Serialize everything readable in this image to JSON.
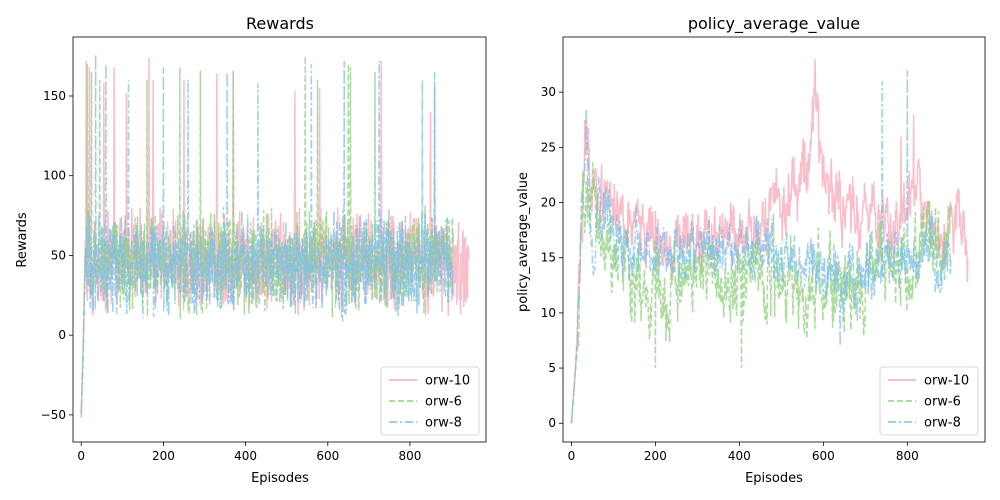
{
  "colors": {
    "orw-10": "#f7a8b8",
    "orw-6": "#8fcf7f",
    "orw-8": "#7fbfe8"
  },
  "chart_data": [
    {
      "type": "line",
      "title": "Rewards",
      "xlabel": "Episodes",
      "ylabel": "Rewards",
      "xlim": [
        -20,
        985
      ],
      "ylim": [
        -67,
        187
      ],
      "xticks": [
        0,
        200,
        400,
        600,
        800
      ],
      "xtick_labels": [
        "0",
        "200",
        "400",
        "600",
        "800"
      ],
      "yticks": [
        -50,
        0,
        50,
        100,
        150
      ],
      "ytick_labels": [
        "−50",
        "0",
        "50",
        "100",
        "150"
      ],
      "legend_position": "lower-right",
      "grid": false,
      "series": [
        {
          "name": "orw-10",
          "style": "solid",
          "n_episodes": 945,
          "x": [
            0,
            5,
            10,
            20,
            30,
            40,
            60,
            80,
            100,
            130,
            160,
            200,
            240,
            280,
            320,
            360,
            400,
            440,
            480,
            520,
            560,
            600,
            640,
            680,
            720,
            760,
            800,
            840,
            880,
            920,
            940
          ],
          "values": [
            -52,
            -5,
            60,
            50,
            52,
            48,
            45,
            50,
            47,
            52,
            48,
            50,
            46,
            49,
            51,
            47,
            45,
            50,
            48,
            46,
            50,
            49,
            47,
            51,
            46,
            48,
            50,
            47,
            49,
            45,
            50
          ],
          "spikes": [
            [
              12,
              172
            ],
            [
              20,
              168
            ],
            [
              55,
              158
            ],
            [
              80,
              168
            ],
            [
              110,
              152
            ],
            [
              165,
              174
            ],
            [
              175,
              160
            ],
            [
              250,
              160
            ],
            [
              330,
              164
            ],
            [
              370,
              165
            ],
            [
              520,
              153
            ],
            [
              580,
              155
            ],
            [
              730,
              172
            ],
            [
              850,
              140
            ]
          ],
          "noise_range": [
            2,
            80
          ]
        },
        {
          "name": "orw-6",
          "style": "dashed",
          "n_episodes": 905,
          "x": [
            0,
            5,
            10,
            20,
            40,
            80,
            120,
            160,
            200,
            240,
            280,
            320,
            360,
            400,
            440,
            480,
            520,
            560,
            600,
            640,
            680,
            720,
            760,
            800,
            840,
            880,
            900
          ],
          "values": [
            -50,
            -10,
            55,
            50,
            47,
            49,
            48,
            46,
            50,
            48,
            47,
            51,
            49,
            46,
            48,
            50,
            47,
            49,
            48,
            50,
            46,
            49,
            51,
            47,
            48,
            50,
            46
          ],
          "spikes": [
            [
              15,
              170
            ],
            [
              25,
              165
            ],
            [
              45,
              160
            ],
            [
              160,
              160
            ],
            [
              240,
              168
            ],
            [
              290,
              166
            ],
            [
              370,
              166
            ],
            [
              545,
              175
            ],
            [
              575,
              160
            ],
            [
              650,
              170
            ],
            [
              655,
              168
            ],
            [
              715,
              165
            ],
            [
              860,
              155
            ]
          ],
          "noise_range": [
            0,
            82
          ]
        },
        {
          "name": "orw-8",
          "style": "dashdot",
          "n_episodes": 905,
          "x": [
            0,
            5,
            10,
            20,
            40,
            80,
            120,
            160,
            200,
            240,
            280,
            320,
            360,
            400,
            440,
            480,
            520,
            560,
            600,
            640,
            680,
            720,
            760,
            800,
            840,
            880,
            900
          ],
          "values": [
            -48,
            -8,
            52,
            50,
            49,
            47,
            50,
            48,
            46,
            49,
            50,
            47,
            48,
            51,
            46,
            49,
            47,
            50,
            48,
            46,
            49,
            51,
            47,
            48,
            50,
            46,
            48
          ],
          "spikes": [
            [
              35,
              176
            ],
            [
              60,
              170
            ],
            [
              115,
              160
            ],
            [
              200,
              168
            ],
            [
              260,
              160
            ],
            [
              355,
              165
            ],
            [
              430,
              158
            ],
            [
              560,
              170
            ],
            [
              640,
              172
            ],
            [
              725,
              172
            ],
            [
              830,
              160
            ],
            [
              860,
              165
            ]
          ],
          "noise_range": [
            0,
            78
          ]
        }
      ]
    },
    {
      "type": "line",
      "title": "policy_average_value",
      "xlabel": "Episodes",
      "ylabel": "policy_average_value",
      "xlim": [
        -20,
        985
      ],
      "ylim": [
        -1.7,
        35
      ],
      "xticks": [
        0,
        200,
        400,
        600,
        800
      ],
      "xtick_labels": [
        "0",
        "200",
        "400",
        "600",
        "800"
      ],
      "yticks": [
        0,
        5,
        10,
        15,
        20,
        25,
        30
      ],
      "ytick_labels": [
        "0",
        "5",
        "10",
        "15",
        "20",
        "25",
        "30"
      ],
      "legend_position": "lower-right",
      "grid": false,
      "series": [
        {
          "name": "orw-10",
          "style": "solid",
          "n_episodes": 945,
          "x": [
            0,
            10,
            20,
            35,
            50,
            80,
            120,
            160,
            200,
            240,
            280,
            320,
            360,
            400,
            440,
            480,
            520,
            560,
            580,
            600,
            640,
            680,
            720,
            760,
            800,
            820,
            840,
            880,
            920,
            940
          ],
          "values": [
            0,
            5,
            14,
            26,
            21,
            20,
            19,
            18,
            17,
            15,
            18,
            16,
            17,
            16,
            18,
            19,
            20,
            24,
            29,
            22,
            20,
            19,
            19,
            18,
            20,
            22,
            18,
            17,
            19,
            16
          ],
          "spikes": [
            [
              580,
              33
            ],
            [
              815,
              28
            ],
            [
              785,
              26
            ]
          ],
          "noise_amp": 2.2
        },
        {
          "name": "orw-6",
          "style": "dashed",
          "n_episodes": 905,
          "x": [
            0,
            10,
            20,
            35,
            50,
            80,
            120,
            160,
            200,
            240,
            280,
            320,
            360,
            400,
            440,
            480,
            520,
            560,
            600,
            640,
            680,
            720,
            760,
            800,
            840,
            880,
            900
          ],
          "values": [
            0,
            5,
            14,
            22,
            20,
            17,
            14,
            13,
            11,
            13,
            13,
            14,
            12,
            13,
            14,
            13,
            13,
            12,
            12,
            13,
            14,
            14,
            15,
            15,
            16,
            17,
            18
          ],
          "spikes": [
            [
              200,
              5
            ],
            [
              405,
              5
            ]
          ],
          "noise_amp": 2.8
        },
        {
          "name": "orw-8",
          "style": "dashdot",
          "n_episodes": 905,
          "x": [
            0,
            10,
            20,
            35,
            50,
            80,
            120,
            160,
            200,
            240,
            280,
            320,
            360,
            400,
            440,
            480,
            520,
            560,
            600,
            640,
            680,
            720,
            760,
            800,
            840,
            880,
            900
          ],
          "values": [
            0,
            5,
            15,
            27,
            17,
            19,
            17,
            16,
            15,
            15,
            16,
            15,
            16,
            15,
            16,
            15,
            15,
            14,
            14,
            12,
            13,
            14,
            16,
            15,
            16,
            14,
            14
          ],
          "spikes": [
            [
              35,
              28.5
            ],
            [
              740,
              31
            ],
            [
              800,
              32
            ],
            [
              640,
              7
            ]
          ],
          "noise_amp": 2.0
        }
      ]
    }
  ]
}
